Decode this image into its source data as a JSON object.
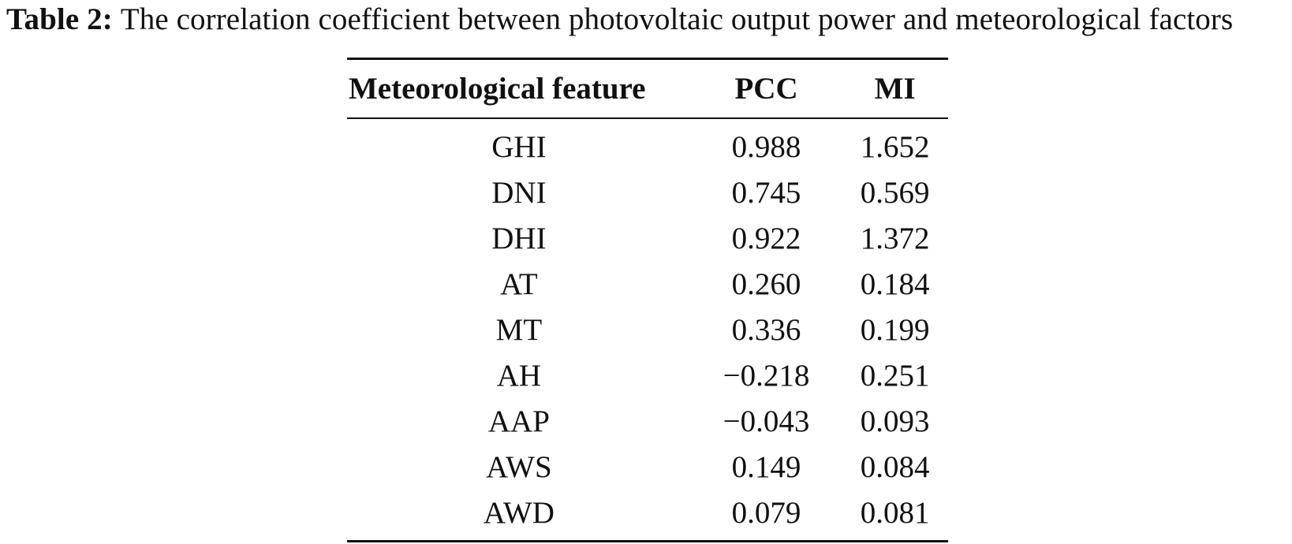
{
  "caption": {
    "label": "Table 2:",
    "text": "The correlation coefficient between photovoltaic output power and meteorological factors"
  },
  "table": {
    "headers": [
      "Meteorological feature",
      "PCC",
      "MI"
    ],
    "rows": [
      [
        "GHI",
        "0.988",
        "1.652"
      ],
      [
        "DNI",
        "0.745",
        "0.569"
      ],
      [
        "DHI",
        "0.922",
        "1.372"
      ],
      [
        "AT",
        "0.260",
        "0.184"
      ],
      [
        "MT",
        "0.336",
        "0.199"
      ],
      [
        "AH",
        "−0.218",
        "0.251"
      ],
      [
        "AAP",
        "−0.043",
        "0.093"
      ],
      [
        "AWS",
        "0.149",
        "0.084"
      ],
      [
        "AWD",
        "0.079",
        "0.081"
      ]
    ]
  }
}
